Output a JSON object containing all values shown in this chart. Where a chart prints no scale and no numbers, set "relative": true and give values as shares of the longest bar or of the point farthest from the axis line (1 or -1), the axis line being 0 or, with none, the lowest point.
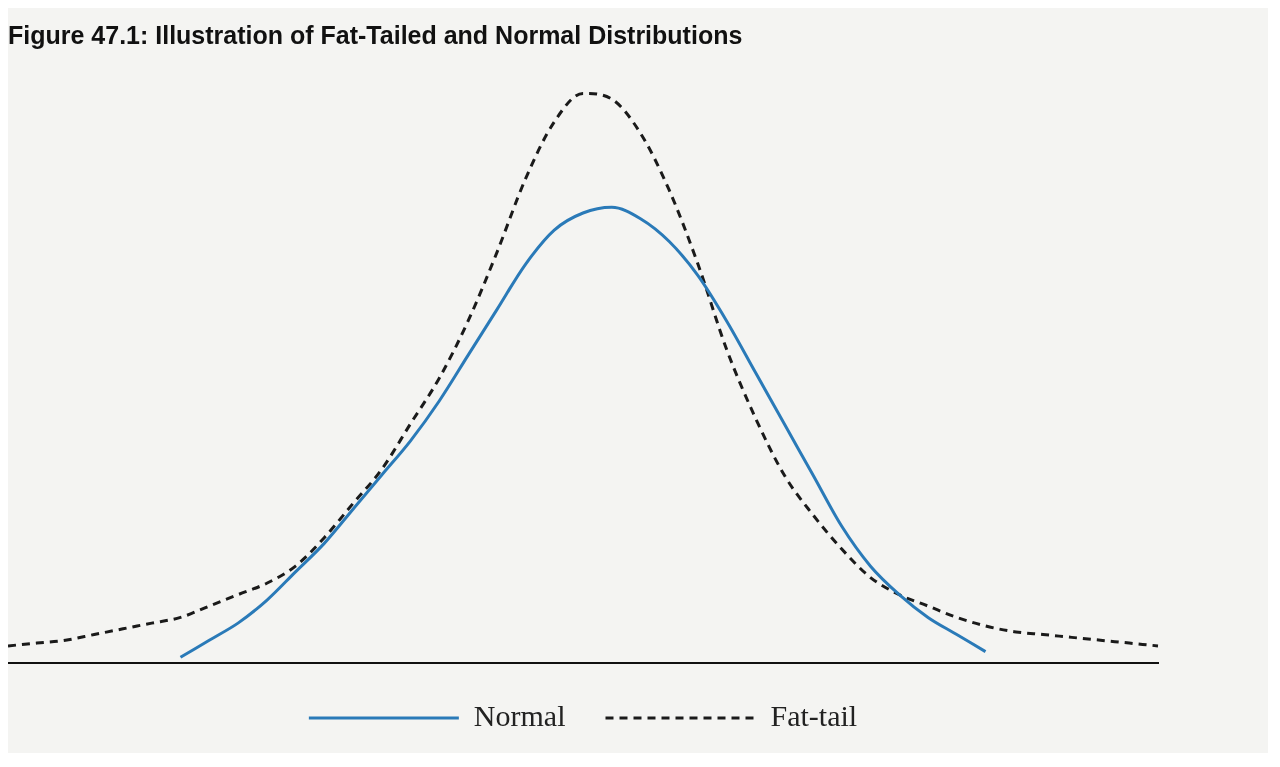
{
  "chart_data": {
    "type": "line",
    "title": "Figure 47.1: Illustration of Fat-Tailed and Normal Distributions",
    "relative": true,
    "legend": "bottom",
    "categories": [
      null,
      null,
      null,
      null,
      null,
      null,
      null,
      null,
      null,
      null,
      null,
      null,
      null,
      null,
      null,
      null,
      null,
      null,
      null,
      null,
      null,
      null,
      null,
      null,
      null,
      null,
      null,
      null,
      null,
      null,
      null,
      null,
      null,
      null,
      null,
      null,
      null,
      null,
      null,
      null,
      null
    ],
    "series": [
      {
        "name": "Normal",
        "color": "#2a7ab8",
        "line_style": "solid",
        "values": [
          null,
          null,
          null,
          null,
          null,
          null,
          0.01,
          0.04,
          0.07,
          0.11,
          0.16,
          0.21,
          0.27,
          0.33,
          0.39,
          0.46,
          0.54,
          0.62,
          0.7,
          0.76,
          0.79,
          0.8,
          0.78,
          0.74,
          0.68,
          0.6,
          0.51,
          0.42,
          0.33,
          0.24,
          0.17,
          0.12,
          0.08,
          0.05,
          0.02,
          null,
          null,
          null,
          null,
          null,
          null
        ]
      },
      {
        "name": "Fat-tail",
        "color": "#1a1a1a",
        "line_style": "dashed",
        "values": [
          0.03,
          0.035,
          0.04,
          0.05,
          0.06,
          0.07,
          0.08,
          0.1,
          0.12,
          0.14,
          0.17,
          0.22,
          0.28,
          0.34,
          0.42,
          0.5,
          0.6,
          0.72,
          0.85,
          0.95,
          1.0,
          0.99,
          0.93,
          0.83,
          0.7,
          0.55,
          0.43,
          0.33,
          0.26,
          0.2,
          0.15,
          0.12,
          0.1,
          0.08,
          0.065,
          0.055,
          0.05,
          0.045,
          0.04,
          0.035,
          0.03
        ]
      }
    ]
  }
}
